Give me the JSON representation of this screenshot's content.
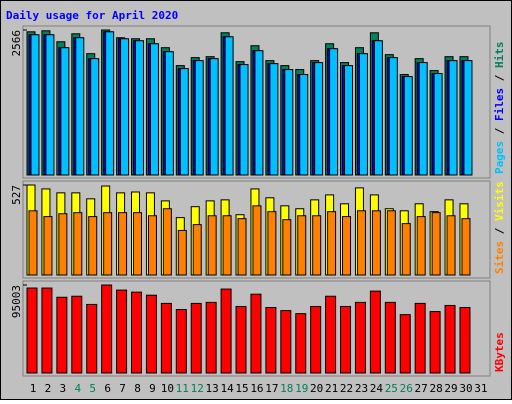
{
  "title": "Daily usage for April 2020",
  "chart_data": [
    {
      "type": "bar",
      "ylim": [
        0,
        2566
      ],
      "yticks": [
        2566
      ],
      "series": [
        {
          "name": "Hits",
          "color": "#00805c",
          "values": [
            2534,
            2552,
            2358,
            2499,
            2147,
            2566,
            2429,
            2411,
            2411,
            2253,
            1936,
            2077,
            2094,
            2517,
            2006,
            2288,
            2024,
            1936,
            1866,
            2024,
            2323,
            1989,
            2253,
            2517,
            2130,
            1778,
            2059,
            1848,
            2094,
            2094,
            null
          ]
        },
        {
          "name": "Files",
          "color": "#0000ff",
          "values": [
            2482,
            2482,
            2253,
            2429,
            2059,
            2534,
            2411,
            2376,
            2323,
            2182,
            1883,
            2024,
            2059,
            2446,
            1954,
            2200,
            1971,
            1866,
            1778,
            1989,
            2235,
            1936,
            2147,
            2376,
            2077,
            1742,
            1989,
            1795,
            2024,
            2024,
            null
          ]
        },
        {
          "name": "Pages",
          "color": "#00c0ff",
          "values": [
            2482,
            2482,
            2253,
            2429,
            2059,
            2534,
            2411,
            2376,
            2323,
            2182,
            1883,
            2024,
            2059,
            2446,
            1954,
            2200,
            1971,
            1866,
            1778,
            1989,
            2235,
            1936,
            2147,
            2376,
            2077,
            1742,
            1989,
            1795,
            2024,
            2024,
            null
          ]
        }
      ]
    },
    {
      "type": "bar",
      "ylim": [
        0,
        527
      ],
      "yticks": [
        527
      ],
      "series": [
        {
          "name": "Visits",
          "color": "#ffff00",
          "values": [
            527,
            504,
            481,
            481,
            446,
            521,
            481,
            486,
            481,
            434,
            336,
            400,
            434,
            440,
            353,
            504,
            452,
            405,
            388,
            440,
            469,
            417,
            510,
            469,
            388,
            376,
            417,
            371,
            440,
            417,
            null
          ]
        },
        {
          "name": "Sites",
          "color": "#ff8000",
          "values": [
            376,
            342,
            359,
            365,
            342,
            365,
            365,
            365,
            347,
            388,
            261,
            295,
            347,
            347,
            330,
            405,
            371,
            324,
            347,
            347,
            371,
            342,
            376,
            376,
            376,
            301,
            342,
            365,
            347,
            330,
            null
          ]
        }
      ]
    },
    {
      "type": "bar",
      "ylim": [
        0,
        95003
      ],
      "yticks": [
        95003
      ],
      "categories": [
        "1",
        "2",
        "3",
        "4",
        "5",
        "6",
        "7",
        "8",
        "9",
        "10",
        "11",
        "12",
        "13",
        "14",
        "15",
        "16",
        "17",
        "18",
        "19",
        "20",
        "21",
        "22",
        "23",
        "24",
        "25",
        "26",
        "27",
        "28",
        "29",
        "30",
        "31"
      ],
      "category_colors": [
        "#000000",
        "#000000",
        "#000000",
        "#00805c",
        "#00805c",
        "#000000",
        "#000000",
        "#000000",
        "#000000",
        "#000000",
        "#00805c",
        "#00805c",
        "#000000",
        "#000000",
        "#000000",
        "#000000",
        "#000000",
        "#00805c",
        "#00805c",
        "#000000",
        "#000000",
        "#000000",
        "#000000",
        "#000000",
        "#00805c",
        "#00805c",
        "#000000",
        "#000000",
        "#000000",
        "#000000",
        "#000000"
      ],
      "series": [
        {
          "name": "KBytes",
          "color": "#ff0000",
          "values": [
            91715,
            91715,
            81770,
            82875,
            74035,
            95003,
            89505,
            87295,
            83980,
            75140,
            68510,
            75140,
            76245,
            90610,
            71825,
            85085,
            70720,
            67405,
            64090,
            71825,
            82875,
            71825,
            76245,
            88400,
            76245,
            62985,
            75140,
            66300,
            72930,
            70720,
            null
          ]
        }
      ]
    }
  ]
}
